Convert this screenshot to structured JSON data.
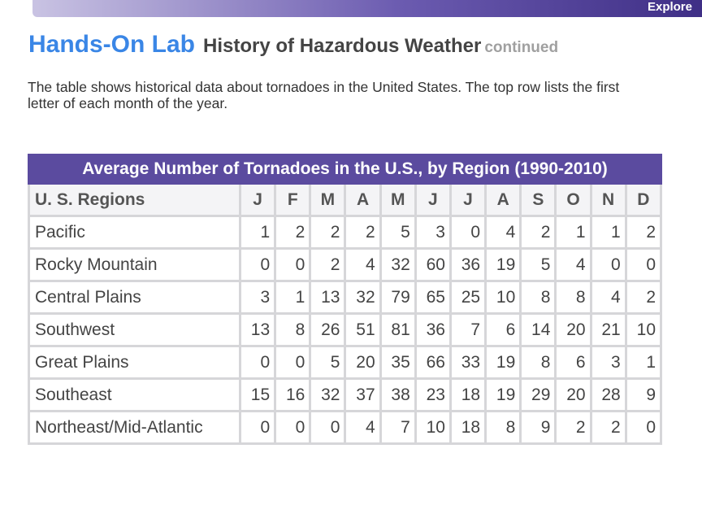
{
  "header": {
    "tab": "Explore",
    "title": "Hands-On Lab",
    "subtitle": "History of Hazardous Weather",
    "continued": "continued"
  },
  "description": "The table shows historical data about tornadoes in the United States. The top row lists the first letter of each month of the year.",
  "table": {
    "title": "Average Number of Tornadoes in the U.S., by Region (1990-2010)",
    "columns": [
      "U. S. Regions",
      "J",
      "F",
      "M",
      "A",
      "M",
      "J",
      "J",
      "A",
      "S",
      "O",
      "N",
      "D"
    ],
    "rows": [
      [
        "Pacific",
        1,
        2,
        2,
        2,
        5,
        3,
        0,
        4,
        2,
        1,
        1,
        2
      ],
      [
        "Rocky Mountain",
        0,
        0,
        2,
        4,
        32,
        60,
        36,
        19,
        5,
        4,
        0,
        0
      ],
      [
        "Central Plains",
        3,
        1,
        13,
        32,
        79,
        65,
        25,
        10,
        8,
        8,
        4,
        2
      ],
      [
        "Southwest",
        13,
        8,
        26,
        51,
        81,
        36,
        7,
        6,
        14,
        20,
        21,
        10
      ],
      [
        "Great Plains",
        0,
        0,
        5,
        20,
        35,
        66,
        33,
        19,
        8,
        6,
        3,
        1
      ],
      [
        "Southeast",
        15,
        16,
        32,
        37,
        38,
        23,
        18,
        19,
        29,
        20,
        28,
        9
      ],
      [
        "Northeast/Mid-Atlantic",
        0,
        0,
        0,
        4,
        7,
        10,
        18,
        8,
        9,
        2,
        2,
        0
      ]
    ]
  }
}
